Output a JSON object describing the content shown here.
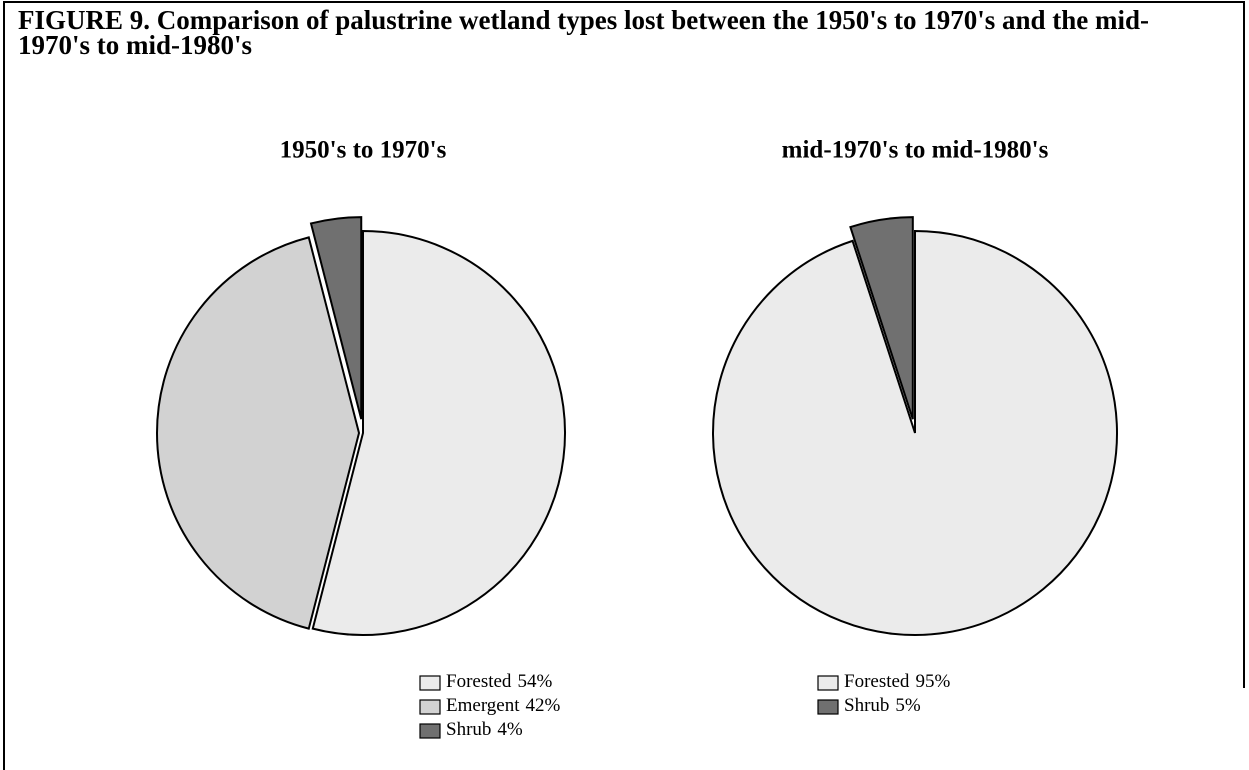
{
  "title": "FIGURE 9. Comparison of palustrine wetland types lost between the 1950's to 1970's and the mid-1970's to mid-1980's",
  "chart_data": [
    {
      "type": "pie",
      "title": "1950's to 1970's",
      "categories": [
        "Forested",
        "Emergent",
        "Shrub"
      ],
      "values": [
        54,
        42,
        4
      ],
      "value_labels": [
        "54%",
        "42%",
        "4%"
      ],
      "colors": [
        "#ebebeb",
        "#d2d2d2",
        "#707070"
      ]
    },
    {
      "type": "pie",
      "title": "mid-1970's to mid-1980's",
      "categories": [
        "Forested",
        "Shrub"
      ],
      "values": [
        95,
        5
      ],
      "value_labels": [
        "95%",
        "5%"
      ],
      "colors": [
        "#ebebeb",
        "#707070"
      ]
    }
  ]
}
